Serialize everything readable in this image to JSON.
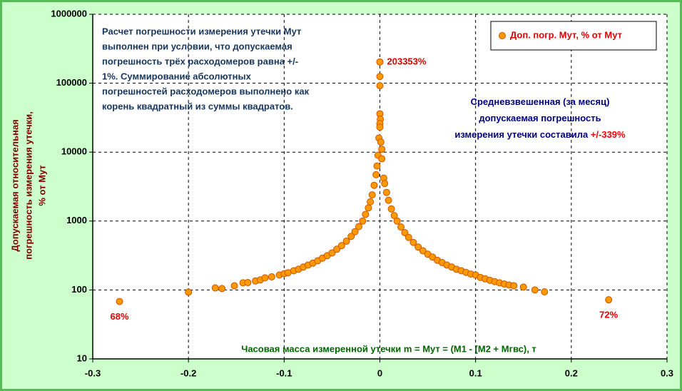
{
  "chart_data": {
    "type": "scatter",
    "y_label": [
      "Допускаемая относительная",
      "погрешность измерения утечки,",
      "% от Мут"
    ],
    "x_label": "Часовая масса измеренной утечки m = Мут = (М1 - (М2 + Мгвс), т",
    "note": {
      "lines": [
        "Расчет погрешности измерения утечки Мут",
        "выполнен при условии, что допускаемая",
        "погрешность трёх расходомеров равна +/-",
        "1%. Суммирование абсолютных",
        "погрешностей  расходомеров выполнено как",
        "корень квадратный из суммы квадратов."
      ]
    },
    "summary": {
      "lines": [
        "Средневзвешенная (за месяц)",
        "допускаемая погрешность",
        "измерения утечки составила "
      ],
      "highlight": "+/-339%"
    },
    "series": [
      {
        "name": "Доп. погр. Мут, % от Мут",
        "color": "#ff9900",
        "x": [
          -0.272,
          -0.2,
          -0.172,
          -0.165,
          -0.152,
          -0.143,
          -0.138,
          -0.13,
          -0.125,
          -0.12,
          -0.113,
          -0.105,
          -0.1,
          -0.096,
          -0.09,
          -0.085,
          -0.08,
          -0.075,
          -0.07,
          -0.065,
          -0.06,
          -0.055,
          -0.05,
          -0.045,
          -0.04,
          -0.035,
          -0.03,
          -0.026,
          -0.022,
          -0.018,
          -0.015,
          -0.012,
          -0.01,
          -0.008,
          -0.006,
          -0.004,
          -0.003,
          -0.002,
          0,
          0,
          0,
          0,
          0.0005,
          0,
          0,
          -0.001,
          0.001,
          0.002,
          0.002,
          0.004,
          0.005,
          0.007,
          0.009,
          0.012,
          0.015,
          0.018,
          0.022,
          0.026,
          0.03,
          0.035,
          0.04,
          0.045,
          0.05,
          0.055,
          0.06,
          0.065,
          0.07,
          0.075,
          0.08,
          0.085,
          0.09,
          0.095,
          0.1,
          0.105,
          0.11,
          0.115,
          0.12,
          0.125,
          0.13,
          0.135,
          0.14,
          0.15,
          0.162,
          0.172,
          0.239
        ],
        "values": [
          68,
          93,
          107,
          105,
          115,
          127,
          128,
          135,
          140,
          150,
          155,
          165,
          172,
          178,
          190,
          200,
          215,
          230,
          245,
          265,
          290,
          315,
          345,
          390,
          440,
          510,
          600,
          700,
          830,
          1000,
          1250,
          1550,
          1900,
          2400,
          3300,
          4700,
          6300,
          9000,
          203353,
          125000,
          92000,
          36000,
          30000,
          26000,
          23000,
          16000,
          14000,
          11000,
          8000,
          4200,
          3500,
          2600,
          2000,
          1500,
          1200,
          1000,
          820,
          680,
          580,
          490,
          420,
          370,
          330,
          300,
          270,
          250,
          230,
          215,
          200,
          190,
          180,
          170,
          165,
          152,
          145,
          138,
          132,
          127,
          122,
          118,
          115,
          110,
          100,
          94,
          72
        ],
        "value_labels": [
          "68%",
          null,
          null,
          null,
          null,
          null,
          null,
          null,
          null,
          null,
          null,
          null,
          null,
          null,
          null,
          null,
          null,
          null,
          null,
          null,
          null,
          null,
          null,
          null,
          null,
          null,
          null,
          null,
          null,
          null,
          null,
          null,
          null,
          null,
          null,
          null,
          null,
          null,
          "203353%",
          null,
          null,
          null,
          null,
          null,
          null,
          null,
          null,
          null,
          null,
          null,
          null,
          null,
          null,
          null,
          null,
          null,
          null,
          null,
          null,
          null,
          null,
          null,
          null,
          null,
          null,
          null,
          null,
          null,
          null,
          null,
          null,
          null,
          null,
          null,
          null,
          null,
          null,
          null,
          null,
          null,
          null,
          null,
          null,
          null,
          "72%"
        ]
      }
    ],
    "xlim": [
      -0.3,
      0.3
    ],
    "xticks": [
      -0.3,
      -0.2,
      -0.1,
      0,
      0.1,
      0.2,
      0.3
    ],
    "ylim": [
      10,
      1000000
    ],
    "yticks": [
      10,
      100,
      1000,
      10000,
      100000,
      1000000
    ],
    "yscale": "log",
    "grid": true,
    "legend": "upper right"
  }
}
